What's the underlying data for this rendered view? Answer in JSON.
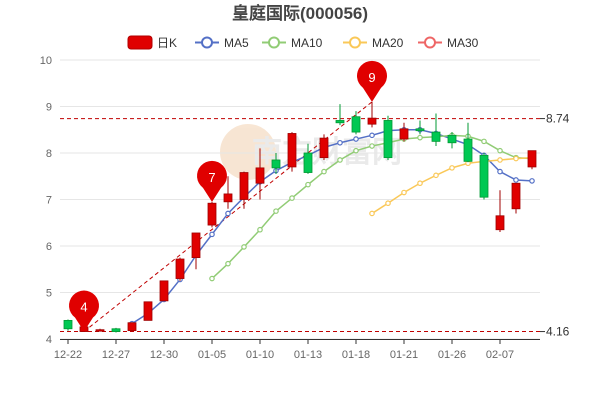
{
  "chart_data": {
    "type": "candlestick",
    "title": "皇庭国际(000056)",
    "watermark": "南方财富网",
    "legend": {
      "placement": "top",
      "items": [
        {
          "label": "日K",
          "color": "#e00000"
        },
        {
          "label": "MA5",
          "color": "#5470c6"
        },
        {
          "label": "MA10",
          "color": "#91cc75"
        },
        {
          "label": "MA20",
          "color": "#fac858"
        },
        {
          "label": "MA30",
          "color": "#ee6666"
        }
      ]
    },
    "colors": {
      "up": "#e00000",
      "down": "#00c853",
      "grid": "#e6e6e6",
      "axis": "#333333",
      "refline": "#c00000"
    },
    "ylim": [
      4,
      10
    ],
    "yticks": [
      "4",
      "5",
      "6",
      "7",
      "8",
      "9",
      "10"
    ],
    "xticks": [
      {
        "label": "12-22",
        "index": 0
      },
      {
        "label": "12-27",
        "index": 3
      },
      {
        "label": "12-30",
        "index": 6
      },
      {
        "label": "01-05",
        "index": 9
      },
      {
        "label": "01-10",
        "index": 12
      },
      {
        "label": "01-13",
        "index": 15
      },
      {
        "label": "01-18",
        "index": 18
      },
      {
        "label": "01-21",
        "index": 21
      },
      {
        "label": "01-26",
        "index": 24
      },
      {
        "label": "02-07",
        "index": 27
      }
    ],
    "ref_lines": [
      {
        "value": 8.74,
        "label": "8.74"
      },
      {
        "value": 4.16,
        "label": "4.16"
      }
    ],
    "candles": [
      {
        "open": 4.4,
        "close": 4.22,
        "low": 4.18,
        "high": 4.42
      },
      {
        "open": 4.16,
        "close": 4.26,
        "low": 4.16,
        "high": 4.28
      },
      {
        "open": 4.18,
        "close": 4.2,
        "low": 4.16,
        "high": 4.22
      },
      {
        "open": 4.22,
        "close": 4.16,
        "low": 4.14,
        "high": 4.24
      },
      {
        "open": 4.18,
        "close": 4.35,
        "low": 4.16,
        "high": 4.36
      },
      {
        "open": 4.4,
        "close": 4.8,
        "low": 4.4,
        "high": 4.8
      },
      {
        "open": 4.82,
        "close": 5.25,
        "low": 4.82,
        "high": 5.25
      },
      {
        "open": 5.3,
        "close": 5.72,
        "low": 5.25,
        "high": 5.75
      },
      {
        "open": 5.75,
        "close": 6.28,
        "low": 5.5,
        "high": 6.28
      },
      {
        "open": 6.45,
        "close": 6.92,
        "low": 6.4,
        "high": 6.95
      },
      {
        "open": 6.95,
        "close": 7.12,
        "low": 6.8,
        "high": 7.5
      },
      {
        "open": 7.0,
        "close": 7.58,
        "low": 6.8,
        "high": 7.6
      },
      {
        "open": 7.35,
        "close": 7.68,
        "low": 7.0,
        "high": 8.1
      },
      {
        "open": 7.85,
        "close": 7.68,
        "low": 7.55,
        "high": 8.0
      },
      {
        "open": 7.7,
        "close": 8.42,
        "low": 7.6,
        "high": 8.45
      },
      {
        "open": 8.0,
        "close": 7.58,
        "low": 7.55,
        "high": 8.2
      },
      {
        "open": 7.9,
        "close": 8.32,
        "low": 7.85,
        "high": 8.4
      },
      {
        "open": 8.7,
        "close": 8.65,
        "low": 8.6,
        "high": 9.05
      },
      {
        "open": 8.78,
        "close": 8.45,
        "low": 8.4,
        "high": 8.9
      },
      {
        "open": 8.62,
        "close": 8.75,
        "low": 8.55,
        "high": 9.1
      },
      {
        "open": 8.7,
        "close": 7.9,
        "low": 7.85,
        "high": 8.8
      },
      {
        "open": 8.3,
        "close": 8.52,
        "low": 8.25,
        "high": 8.65
      },
      {
        "open": 8.52,
        "close": 8.48,
        "low": 8.4,
        "high": 8.7
      },
      {
        "open": 8.45,
        "close": 8.25,
        "low": 8.15,
        "high": 8.85
      },
      {
        "open": 8.38,
        "close": 8.22,
        "low": 8.1,
        "high": 8.45
      },
      {
        "open": 8.3,
        "close": 7.82,
        "low": 7.8,
        "high": 8.65
      },
      {
        "open": 7.95,
        "close": 7.05,
        "low": 7.0,
        "high": 8.0
      },
      {
        "open": 6.35,
        "close": 6.65,
        "low": 6.3,
        "high": 7.2
      },
      {
        "open": 6.8,
        "close": 7.35,
        "low": 6.7,
        "high": 7.35
      },
      {
        "open": 7.7,
        "close": 8.05,
        "low": 7.65,
        "high": 8.05
      }
    ],
    "ma5": [
      null,
      null,
      null,
      null,
      4.33,
      4.55,
      4.85,
      5.28,
      5.8,
      6.25,
      6.7,
      7.05,
      7.38,
      7.62,
      7.8,
      7.95,
      8.12,
      8.22,
      8.3,
      8.38,
      8.48,
      8.5,
      8.5,
      8.42,
      8.3,
      8.18,
      7.95,
      7.6,
      7.42,
      7.4
    ],
    "ma10": [
      null,
      null,
      null,
      null,
      null,
      null,
      null,
      null,
      null,
      5.3,
      5.62,
      5.98,
      6.35,
      6.75,
      7.03,
      7.32,
      7.6,
      7.85,
      8.05,
      8.15,
      8.22,
      8.3,
      8.33,
      8.35,
      8.38,
      8.36,
      8.25,
      8.05,
      7.9,
      7.88
    ],
    "ma20": [
      null,
      null,
      null,
      null,
      null,
      null,
      null,
      null,
      null,
      null,
      null,
      null,
      null,
      null,
      null,
      null,
      null,
      null,
      null,
      6.7,
      6.92,
      7.15,
      7.35,
      7.52,
      7.68,
      7.78,
      7.82,
      7.85,
      7.88,
      7.9
    ],
    "ma30": [],
    "markers": [
      {
        "label": "4",
        "index": 1,
        "value": 4.16
      },
      {
        "label": "7",
        "index": 9,
        "value": 6.95
      },
      {
        "label": "9",
        "index": 19,
        "value": 9.1
      }
    ]
  }
}
